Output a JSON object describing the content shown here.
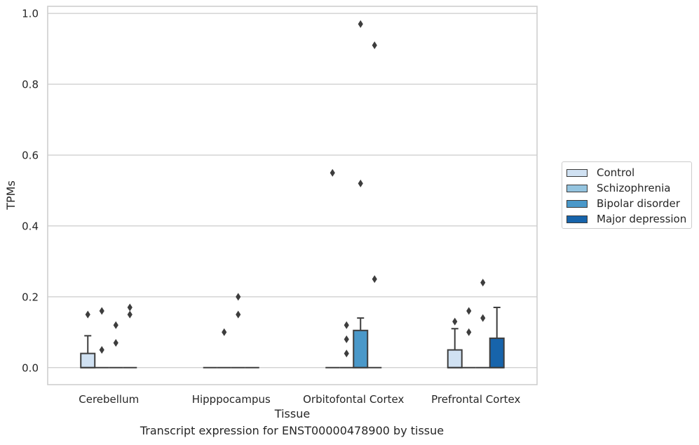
{
  "caption": "Transcript expression for ENST00000478900 by tissue",
  "colors": {
    "control": "#d0e1f2",
    "schizophrenia": "#94c4df",
    "bipolar": "#4a98c9",
    "depression": "#1764ab",
    "grid": "#cccccc",
    "line": "#3d3d3d"
  },
  "chart_data": {
    "type": "box",
    "xlabel": "Tissue",
    "ylabel": "TPMs",
    "ylim": [
      -0.048,
      1.02
    ],
    "yticks": [
      "0.0",
      "0.2",
      "0.4",
      "0.6",
      "0.8",
      "1.0"
    ],
    "grid": true,
    "legend_position": "right",
    "categories": [
      "Cerebellum",
      "Hipppocampus",
      "Orbitofontal Cortex",
      "Prefrontal Cortex"
    ],
    "series": [
      {
        "name": "Control",
        "color": "#d0e1f2",
        "boxes": [
          {
            "q1": 0,
            "median": 0,
            "q3": 0.04,
            "whisker_low": 0,
            "whisker_high": 0.09,
            "outliers": [
              0.15
            ]
          },
          {
            "q1": 0,
            "median": 0,
            "q3": 0,
            "whisker_low": 0,
            "whisker_high": 0,
            "outliers": []
          },
          {
            "q1": 0,
            "median": 0,
            "q3": 0,
            "whisker_low": 0,
            "whisker_high": 0,
            "outliers": [
              0.55
            ]
          },
          {
            "q1": 0,
            "median": 0,
            "q3": 0.05,
            "whisker_low": 0,
            "whisker_high": 0.11,
            "outliers": [
              0.13
            ]
          }
        ]
      },
      {
        "name": "Schizophrenia",
        "color": "#94c4df",
        "boxes": [
          {
            "q1": 0,
            "median": 0,
            "q3": 0,
            "whisker_low": 0,
            "whisker_high": 0,
            "outliers": [
              0.05,
              0.16
            ]
          },
          {
            "q1": 0,
            "median": 0,
            "q3": 0,
            "whisker_low": 0,
            "whisker_high": 0,
            "outliers": [
              0.1
            ]
          },
          {
            "q1": 0,
            "median": 0,
            "q3": 0,
            "whisker_low": 0,
            "whisker_high": 0,
            "outliers": [
              0.04,
              0.08,
              0.12
            ]
          },
          {
            "q1": 0,
            "median": 0,
            "q3": 0,
            "whisker_low": 0,
            "whisker_high": 0,
            "outliers": [
              0.1,
              0.16
            ]
          }
        ]
      },
      {
        "name": "Bipolar disorder",
        "color": "#4a98c9",
        "boxes": [
          {
            "q1": 0,
            "median": 0,
            "q3": 0,
            "whisker_low": 0,
            "whisker_high": 0,
            "outliers": [
              0.07,
              0.12
            ]
          },
          {
            "q1": 0,
            "median": 0,
            "q3": 0,
            "whisker_low": 0,
            "whisker_high": 0,
            "outliers": [
              0.15,
              0.2
            ]
          },
          {
            "q1": 0,
            "median": 0,
            "q3": 0.105,
            "whisker_low": 0,
            "whisker_high": 0.14,
            "outliers": [
              0.52,
              0.97
            ]
          },
          {
            "q1": 0,
            "median": 0,
            "q3": 0,
            "whisker_low": 0,
            "whisker_high": 0,
            "outliers": [
              0.14,
              0.24
            ]
          }
        ]
      },
      {
        "name": "Major depression",
        "color": "#1764ab",
        "boxes": [
          {
            "q1": 0,
            "median": 0,
            "q3": 0,
            "whisker_low": 0,
            "whisker_high": 0,
            "outliers": [
              0.15,
              0.17
            ]
          },
          {
            "q1": 0,
            "median": 0,
            "q3": 0,
            "whisker_low": 0,
            "whisker_high": 0,
            "outliers": []
          },
          {
            "q1": 0,
            "median": 0,
            "q3": 0,
            "whisker_low": 0,
            "whisker_high": 0,
            "outliers": [
              0.25,
              0.91
            ]
          },
          {
            "q1": 0,
            "median": 0,
            "q3": 0.083,
            "whisker_low": 0,
            "whisker_high": 0.17,
            "outliers": []
          }
        ]
      }
    ]
  }
}
